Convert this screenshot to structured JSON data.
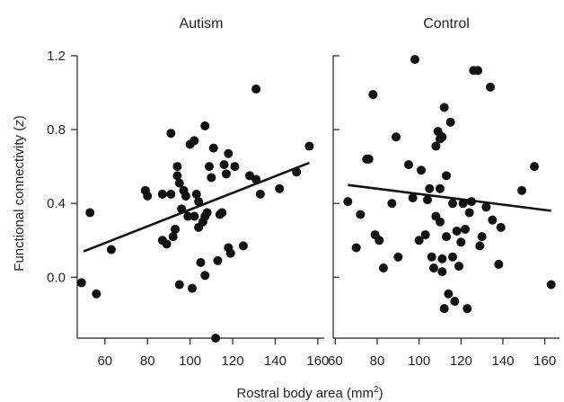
{
  "chart_data": {
    "type": "scatter",
    "xlabel": "Rostral body area (mm",
    "xlabel_sup": "2",
    "xlabel_close": ")",
    "ylabel": "Functional connectivity (",
    "ylabel_var": "z",
    "ylabel_close": ")",
    "ylim": [
      -0.33,
      1.2
    ],
    "yticks": [
      0.0,
      0.4,
      0.8,
      1.2
    ],
    "ytick_labels": [
      "0.0",
      "0.4",
      "0.8",
      "1.2"
    ],
    "panels": [
      {
        "title": "Autism",
        "xlim": [
          47,
          163
        ],
        "xticks": [
          60,
          80,
          100,
          120,
          140,
          160
        ],
        "xtick_labels": [
          "60",
          "80",
          "100",
          "120",
          "140",
          "160"
        ],
        "fit_line": {
          "x": [
            50,
            156
          ],
          "y": [
            0.14,
            0.62
          ]
        },
        "points": [
          [
            49,
            -0.03
          ],
          [
            53,
            0.35
          ],
          [
            56,
            -0.09
          ],
          [
            63,
            0.15
          ],
          [
            79,
            0.47
          ],
          [
            80,
            0.44
          ],
          [
            87,
            0.2
          ],
          [
            87,
            0.45
          ],
          [
            89,
            0.18
          ],
          [
            91,
            0.45
          ],
          [
            91,
            0.78
          ],
          [
            92,
            0.22
          ],
          [
            93,
            0.26
          ],
          [
            94,
            0.6
          ],
          [
            94,
            0.55
          ],
          [
            95,
            0.51
          ],
          [
            95,
            -0.04
          ],
          [
            96,
            0.37
          ],
          [
            97,
            0.47
          ],
          [
            98,
            0.44
          ],
          [
            99,
            0.33
          ],
          [
            100,
            0.72
          ],
          [
            101,
            -0.06
          ],
          [
            102,
            0.74
          ],
          [
            102,
            0.33
          ],
          [
            103,
            0.45
          ],
          [
            104,
            0.27
          ],
          [
            104,
            0.41
          ],
          [
            105,
            0.08
          ],
          [
            106,
            0.3
          ],
          [
            107,
            0.82
          ],
          [
            107,
            0.33
          ],
          [
            107,
            0.01
          ],
          [
            108,
            0.35
          ],
          [
            109,
            0.6
          ],
          [
            110,
            0.54
          ],
          [
            111,
            0.7
          ],
          [
            112,
            -0.33
          ],
          [
            113,
            0.09
          ],
          [
            114,
            0.34
          ],
          [
            115,
            0.35
          ],
          [
            116,
            0.61
          ],
          [
            117,
            0.56
          ],
          [
            118,
            0.67
          ],
          [
            118,
            0.16
          ],
          [
            119,
            0.13
          ],
          [
            121,
            0.6
          ],
          [
            125,
            0.17
          ],
          [
            128,
            0.55
          ],
          [
            131,
            0.53
          ],
          [
            133,
            0.45
          ],
          [
            131,
            1.02
          ],
          [
            142,
            0.48
          ],
          [
            150,
            0.57
          ],
          [
            156,
            0.71
          ]
        ]
      },
      {
        "title": "Control",
        "xlim": [
          59,
          167
        ],
        "xticks": [
          60,
          80,
          100,
          120,
          140,
          160
        ],
        "xtick_labels": [
          "60",
          "80",
          "100",
          "120",
          "140",
          "160"
        ],
        "fit_line": {
          "x": [
            66,
            163
          ],
          "y": [
            0.5,
            0.36
          ]
        },
        "points": [
          [
            66,
            0.41
          ],
          [
            70,
            0.16
          ],
          [
            72,
            0.34
          ],
          [
            75,
            0.64
          ],
          [
            76,
            0.64
          ],
          [
            78,
            0.99
          ],
          [
            79,
            0.23
          ],
          [
            81,
            0.2
          ],
          [
            83,
            0.05
          ],
          [
            87,
            0.4
          ],
          [
            89,
            0.76
          ],
          [
            90,
            0.11
          ],
          [
            95,
            0.61
          ],
          [
            97,
            0.43
          ],
          [
            98,
            1.18
          ],
          [
            100,
            0.2
          ],
          [
            101,
            0.58
          ],
          [
            103,
            0.23
          ],
          [
            104,
            0.42
          ],
          [
            105,
            0.48
          ],
          [
            106,
            0.11
          ],
          [
            107,
            0.05
          ],
          [
            108,
            0.33
          ],
          [
            108,
            0.71
          ],
          [
            109,
            0.79
          ],
          [
            110,
            0.75
          ],
          [
            110,
            0.48
          ],
          [
            110,
            0.3
          ],
          [
            111,
            0.76
          ],
          [
            111,
            0.1
          ],
          [
            111,
            0.03
          ],
          [
            112,
            0.92
          ],
          [
            112,
            -0.17
          ],
          [
            113,
            0.55
          ],
          [
            113,
            0.22
          ],
          [
            114,
            -0.09
          ],
          [
            115,
            0.84
          ],
          [
            116,
            0.4
          ],
          [
            116,
            0.11
          ],
          [
            117,
            -0.13
          ],
          [
            118,
            0.25
          ],
          [
            119,
            0.06
          ],
          [
            120,
            0.19
          ],
          [
            121,
            0.4
          ],
          [
            122,
            0.26
          ],
          [
            123,
            -0.17
          ],
          [
            124,
            0.35
          ],
          [
            125,
            0.41
          ],
          [
            126,
            1.12
          ],
          [
            128,
            1.12
          ],
          [
            129,
            0.17
          ],
          [
            130,
            0.22
          ],
          [
            132,
            0.38
          ],
          [
            134,
            1.03
          ],
          [
            135,
            0.31
          ],
          [
            138,
            0.07
          ],
          [
            139,
            0.27
          ],
          [
            149,
            0.47
          ],
          [
            155,
            0.6
          ],
          [
            163,
            -0.04
          ]
        ]
      }
    ]
  }
}
